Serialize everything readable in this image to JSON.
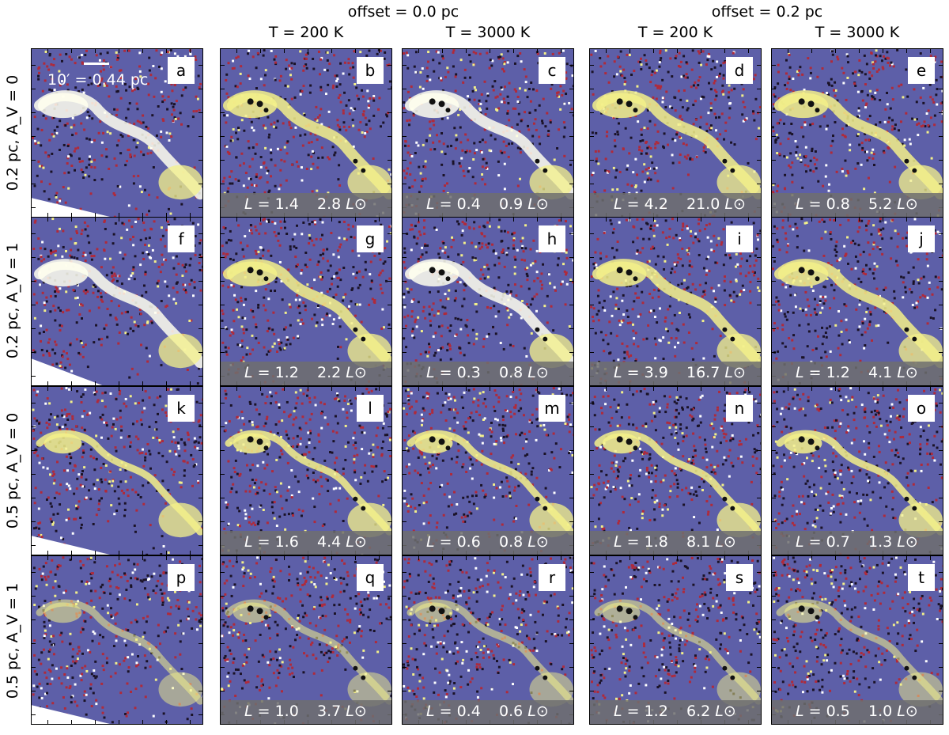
{
  "groups": [
    {
      "label": "offset = 0.0 pc"
    },
    {
      "label": "offset = 0.2 pc"
    }
  ],
  "columns": [
    {
      "label": "T = 200 K"
    },
    {
      "label": "T = 3000 K"
    },
    {
      "label": "T = 200 K"
    },
    {
      "label": "T = 3000 K"
    }
  ],
  "rows": [
    {
      "label": "0.2 pc, A_V = 0"
    },
    {
      "label": "0.2 pc, A_V = 1"
    },
    {
      "label": "0.5 pc, A_V = 0"
    },
    {
      "label": "0.5 pc, A_V = 1"
    }
  ],
  "scale": {
    "label": "10′ = 0.44 pc"
  },
  "panels": [
    {
      "id": "a",
      "L1": "",
      "L2": ""
    },
    {
      "id": "b",
      "L1": "1.4",
      "L2": "2.8"
    },
    {
      "id": "c",
      "L1": "0.4",
      "L2": "0.9"
    },
    {
      "id": "d",
      "L1": "4.2",
      "L2": "21.0"
    },
    {
      "id": "e",
      "L1": "0.8",
      "L2": "5.2"
    },
    {
      "id": "f",
      "L1": "",
      "L2": ""
    },
    {
      "id": "g",
      "L1": "1.2",
      "L2": "2.2"
    },
    {
      "id": "h",
      "L1": "0.3",
      "L2": "0.8"
    },
    {
      "id": "i",
      "L1": "3.9",
      "L2": "16.7"
    },
    {
      "id": "j",
      "L1": "1.2",
      "L2": "4.1"
    },
    {
      "id": "k",
      "L1": "",
      "L2": ""
    },
    {
      "id": "l",
      "L1": "1.6",
      "L2": "4.4"
    },
    {
      "id": "m",
      "L1": "0.6",
      "L2": "0.8"
    },
    {
      "id": "n",
      "L1": "1.8",
      "L2": "8.1"
    },
    {
      "id": "o",
      "L1": "0.7",
      "L2": "1.3"
    },
    {
      "id": "p",
      "L1": "",
      "L2": ""
    },
    {
      "id": "q",
      "L1": "1.0",
      "L2": "3.7"
    },
    {
      "id": "r",
      "L1": "0.4",
      "L2": "0.6"
    },
    {
      "id": "s",
      "L1": "1.2",
      "L2": "6.2"
    },
    {
      "id": "t",
      "L1": "0.5",
      "L2": "1.0"
    }
  ],
  "lum_prefix": "L = ",
  "lum_unit": "L⊙",
  "colors": {
    "background_blue": "#5d5fa8",
    "noise_red": "#b02a3a",
    "noise_dark": "#1a1226",
    "filament_yellow": "#f3f08a",
    "filament_white": "#ffffee",
    "bar_gray": "#6e6e6e"
  }
}
